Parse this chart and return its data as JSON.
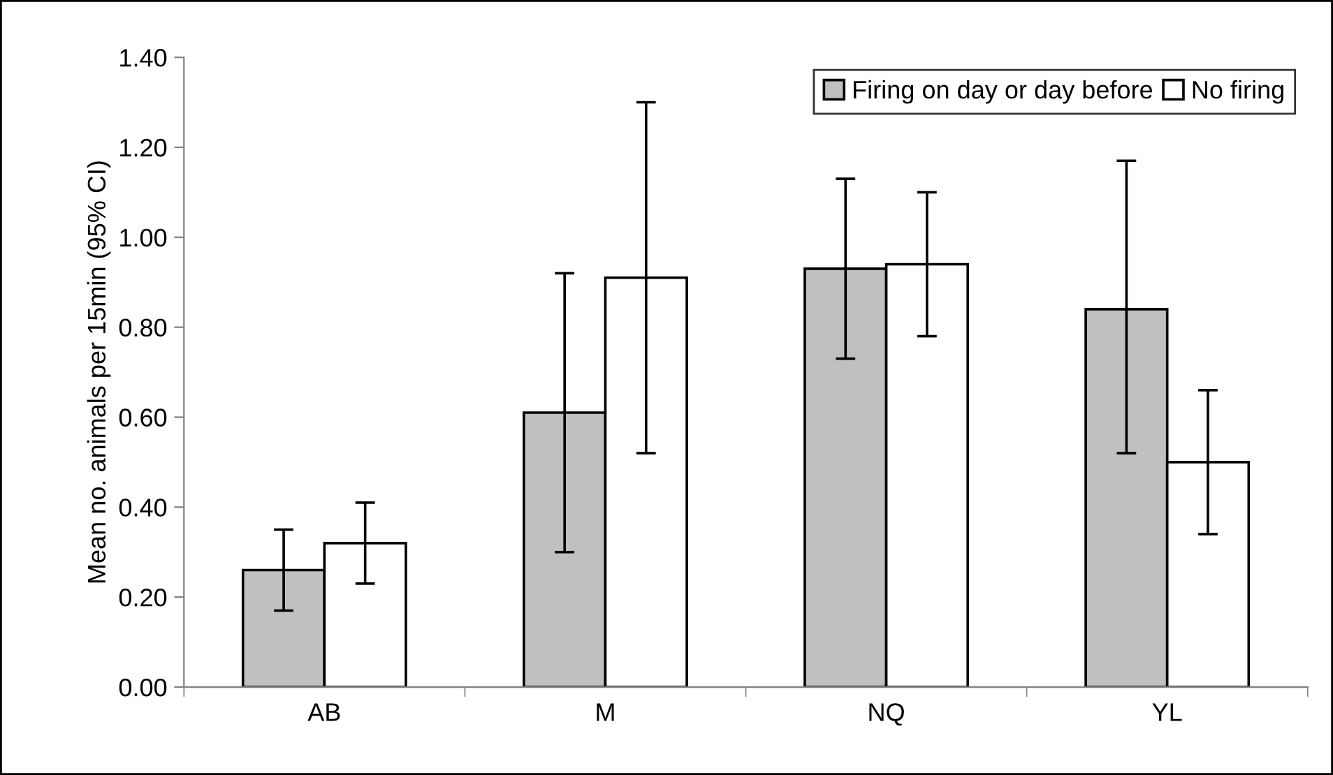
{
  "chart_data": {
    "type": "bar",
    "ylabel": "Mean no. animals per 15min (95% CI)",
    "categories": [
      "AB",
      "M",
      "NQ",
      "YL"
    ],
    "series": [
      {
        "name": "Firing on day or day before",
        "color": "#c0c0c0",
        "values": [
          0.26,
          0.61,
          0.93,
          0.84
        ],
        "errors": [
          [
            0.17,
            0.35
          ],
          [
            0.3,
            0.92
          ],
          [
            0.73,
            1.13
          ],
          [
            0.52,
            1.17
          ]
        ]
      },
      {
        "name": "No firing",
        "color": "#ffffff",
        "values": [
          0.32,
          0.91,
          0.94,
          0.5
        ],
        "errors": [
          [
            0.23,
            0.41
          ],
          [
            0.52,
            1.3
          ],
          [
            0.78,
            1.1
          ],
          [
            0.34,
            0.66
          ]
        ]
      }
    ],
    "ylim": [
      0,
      1.4
    ],
    "yticks": [
      {
        "value": 0,
        "label": "0.00"
      },
      {
        "value": 0.2,
        "label": "0.20"
      },
      {
        "value": 0.4,
        "label": "0.40"
      },
      {
        "value": 0.6,
        "label": "0.60"
      },
      {
        "value": 0.8,
        "label": "0.80"
      },
      {
        "value": 1.0,
        "label": "1.00"
      },
      {
        "value": 1.2,
        "label": "1.20"
      },
      {
        "value": 1.4,
        "label": "1.40"
      }
    ],
    "grid": false,
    "legend": "top right"
  }
}
